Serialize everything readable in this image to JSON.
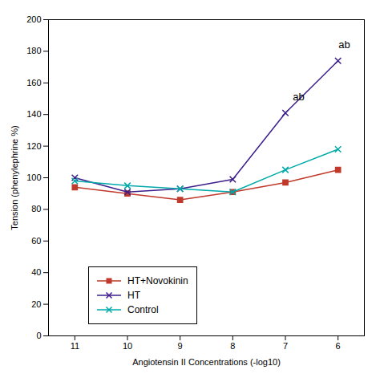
{
  "chart_data": {
    "type": "line",
    "x": [
      11,
      10,
      9,
      8,
      7,
      6
    ],
    "series": [
      {
        "name": "HT+Novokinin",
        "color": "#c0392b",
        "marker": "square",
        "values": [
          94,
          90,
          86,
          91,
          97,
          105
        ]
      },
      {
        "name": "HT",
        "color": "#3d1f8c",
        "marker": "x",
        "values": [
          100,
          91,
          93,
          99,
          141,
          174
        ]
      },
      {
        "name": "Control",
        "color": "#00aaaa",
        "marker": "x",
        "values": [
          98,
          95,
          93,
          91,
          105,
          118
        ]
      }
    ],
    "xlabel": "Angiotensin II Concentrations (-log10)",
    "ylabel": "Tension (phenylephrine %)",
    "xlim": [
      11.5,
      5.5
    ],
    "xticks": [
      11,
      10,
      9,
      8,
      7,
      6
    ],
    "ylim": [
      0,
      200
    ],
    "yticks": [
      0,
      20,
      40,
      60,
      80,
      100,
      120,
      140,
      160,
      180,
      200
    ],
    "annotations": [
      {
        "text": "ab",
        "x": 6.75,
        "y": 148
      },
      {
        "text": "ab",
        "x": 5.88,
        "y": 181
      }
    ],
    "legend": "lower left",
    "grid": false
  }
}
